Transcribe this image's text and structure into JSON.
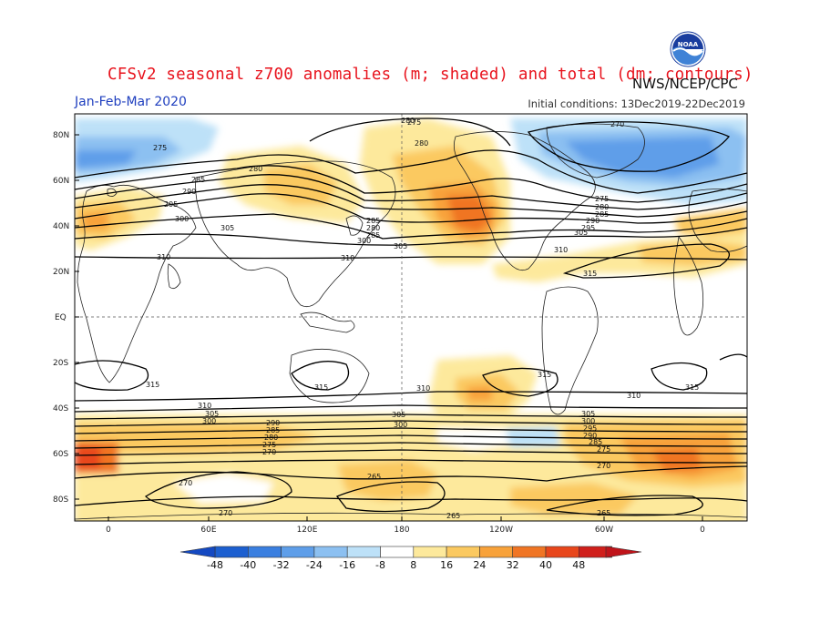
{
  "header": {
    "title": "CFSv2 seasonal z700 anomalies (m; shaded) and total (dm; contours)",
    "period": "Jan-Feb-Mar 2020",
    "initial_conditions": "Initial conditions: 13Dec2019-22Dec2019",
    "agency": "NWS/NCEP/CPC",
    "logo_text": "NOAA"
  },
  "axes": {
    "lat_labels": [
      "80N",
      "60N",
      "40N",
      "20N",
      "EQ",
      "20S",
      "40S",
      "60S",
      "80S"
    ],
    "lon_labels": [
      "0",
      "60E",
      "120E",
      "180",
      "120W",
      "60W",
      "0"
    ]
  },
  "colorbar": {
    "ticks": [
      "-48",
      "-40",
      "-32",
      "-24",
      "-16",
      "-8",
      "8",
      "16",
      "24",
      "32",
      "40",
      "48"
    ],
    "colors": [
      "#1c5fd0",
      "#3a7fe0",
      "#5e9ee9",
      "#8cc0f1",
      "#bde1f8",
      "#ffffff",
      "#fde99c",
      "#fbc960",
      "#f8a23a",
      "#f07524",
      "#e8461b",
      "#d01f1b"
    ],
    "left_triangle_color": "#1449c2",
    "right_triangle_color": "#c0141a"
  },
  "contour_labels": [
    "275",
    "280",
    "285",
    "290",
    "295",
    "300",
    "305",
    "310",
    "315",
    "270",
    "265"
  ],
  "colors": {
    "coast": "#222222",
    "contour": "#000000",
    "neg_strong": "#3a7fe0",
    "neg_mid": "#8cc0f1",
    "neg_light": "#bde1f8",
    "pos_light": "#fde99c",
    "pos_mid": "#fbc960",
    "pos_strong": "#f8a23a",
    "pos_vstrong": "#f07524",
    "pos_max": "#e8461b"
  }
}
